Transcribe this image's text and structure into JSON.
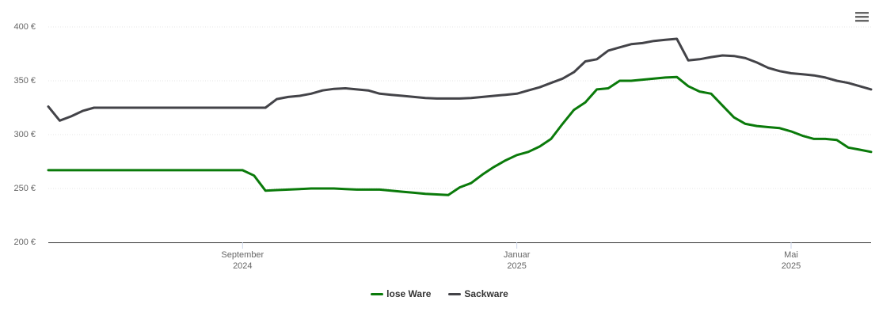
{
  "chart_data": {
    "type": "line",
    "categories": [
      null,
      null,
      null,
      null,
      null,
      null,
      null,
      null,
      null,
      null,
      null,
      null,
      null,
      null,
      null,
      null,
      null,
      "September 2024",
      null,
      null,
      null,
      null,
      null,
      null,
      null,
      null,
      null,
      null,
      null,
      null,
      null,
      null,
      null,
      null,
      null,
      null,
      null,
      null,
      null,
      null,
      null,
      "Januar 2025",
      null,
      null,
      null,
      null,
      null,
      null,
      null,
      null,
      null,
      null,
      null,
      null,
      null,
      null,
      null,
      null,
      null,
      null,
      null,
      null,
      null,
      null,
      null,
      "Mai 2025",
      null,
      null,
      null,
      null,
      null,
      null,
      null
    ],
    "series": [
      {
        "name": "lose Ware",
        "color": "#0a7a0a",
        "values": [
          267,
          267,
          267,
          267,
          267,
          267,
          267,
          267,
          267,
          267,
          267,
          267,
          267,
          267,
          267,
          267,
          267,
          267,
          262,
          248,
          248.5,
          249,
          249.5,
          250,
          250,
          250,
          249.5,
          249,
          249,
          249,
          248,
          247,
          246,
          245,
          244.5,
          244,
          251,
          255,
          263,
          270,
          276,
          281,
          284,
          289,
          296,
          310,
          323,
          330,
          342,
          343,
          350,
          350,
          351,
          352,
          353,
          353.5,
          345,
          340,
          338,
          327,
          316,
          310,
          308,
          307,
          306,
          303,
          299,
          296,
          296,
          295,
          288,
          286,
          284
        ]
      },
      {
        "name": "Sackware",
        "color": "#434348",
        "values": [
          326,
          313,
          317,
          322,
          325,
          325,
          325,
          325,
          325,
          325,
          325,
          325,
          325,
          325,
          325,
          325,
          325,
          325,
          325,
          325,
          333,
          335,
          336,
          338,
          341,
          342.5,
          343,
          342,
          341,
          338,
          337,
          336,
          335,
          334,
          333.5,
          333.5,
          333.5,
          334,
          335,
          336,
          337,
          338,
          341,
          344,
          348,
          352,
          358,
          368,
          370,
          378,
          381,
          384,
          385,
          387,
          388,
          389,
          369,
          370,
          372,
          373.5,
          373,
          371,
          367,
          362,
          359,
          357,
          356,
          355,
          353,
          350,
          348,
          345,
          342
        ]
      }
    ],
    "ylim": [
      200,
      400
    ],
    "yticks": [
      {
        "value": 200,
        "label": "200 €"
      },
      {
        "value": 250,
        "label": "250 €"
      },
      {
        "value": 300,
        "label": "300 €"
      },
      {
        "value": 350,
        "label": "350 €"
      },
      {
        "value": 400,
        "label": "400 €"
      }
    ],
    "grid": true
  }
}
